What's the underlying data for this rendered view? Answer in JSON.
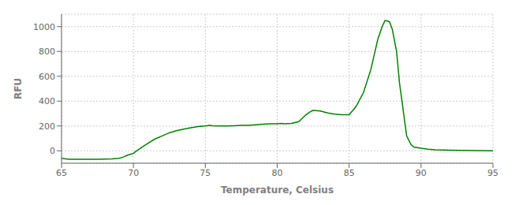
{
  "chart_data": {
    "type": "line",
    "xlabel": "Temperature, Celsius",
    "ylabel": "RFU",
    "x": [
      65.0,
      65.3,
      65.6,
      66.0,
      66.5,
      67.0,
      67.5,
      68.0,
      68.5,
      69.0,
      69.3,
      69.6,
      70.0,
      70.3,
      70.6,
      71.0,
      71.5,
      72.0,
      72.5,
      73.0,
      73.5,
      74.0,
      74.5,
      75.0,
      75.3,
      75.5,
      76.0,
      76.5,
      77.0,
      77.5,
      78.0,
      78.5,
      79.0,
      79.5,
      80.0,
      80.3,
      80.5,
      81.0,
      81.5,
      82.0,
      82.3,
      82.5,
      83.0,
      83.5,
      84.0,
      84.5,
      85.0,
      85.3,
      85.5,
      86.0,
      86.5,
      87.0,
      87.3,
      87.5,
      87.8,
      88.0,
      88.3,
      88.5,
      89.0,
      89.3,
      89.5,
      90.0,
      90.5,
      91.0,
      92.0,
      93.0,
      94.0,
      95.0
    ],
    "values": [
      -60,
      -65,
      -68,
      -68,
      -68,
      -68,
      -68,
      -67,
      -65,
      -60,
      -50,
      -35,
      -20,
      5,
      30,
      60,
      95,
      120,
      145,
      162,
      175,
      185,
      195,
      200,
      205,
      202,
      200,
      200,
      202,
      205,
      205,
      210,
      215,
      218,
      218,
      220,
      218,
      220,
      235,
      290,
      315,
      325,
      320,
      305,
      295,
      290,
      290,
      330,
      360,
      470,
      650,
      900,
      1000,
      1050,
      1040,
      980,
      800,
      550,
      120,
      50,
      30,
      20,
      12,
      8,
      5,
      3,
      2,
      0
    ],
    "color": "#008000",
    "xlim": [
      65,
      95
    ],
    "ylim": [
      -100,
      1100
    ],
    "xticks": [
      65,
      70,
      75,
      80,
      85,
      90,
      95
    ],
    "yticks": [
      0,
      200,
      400,
      600,
      800,
      1000
    ],
    "grid": true
  }
}
